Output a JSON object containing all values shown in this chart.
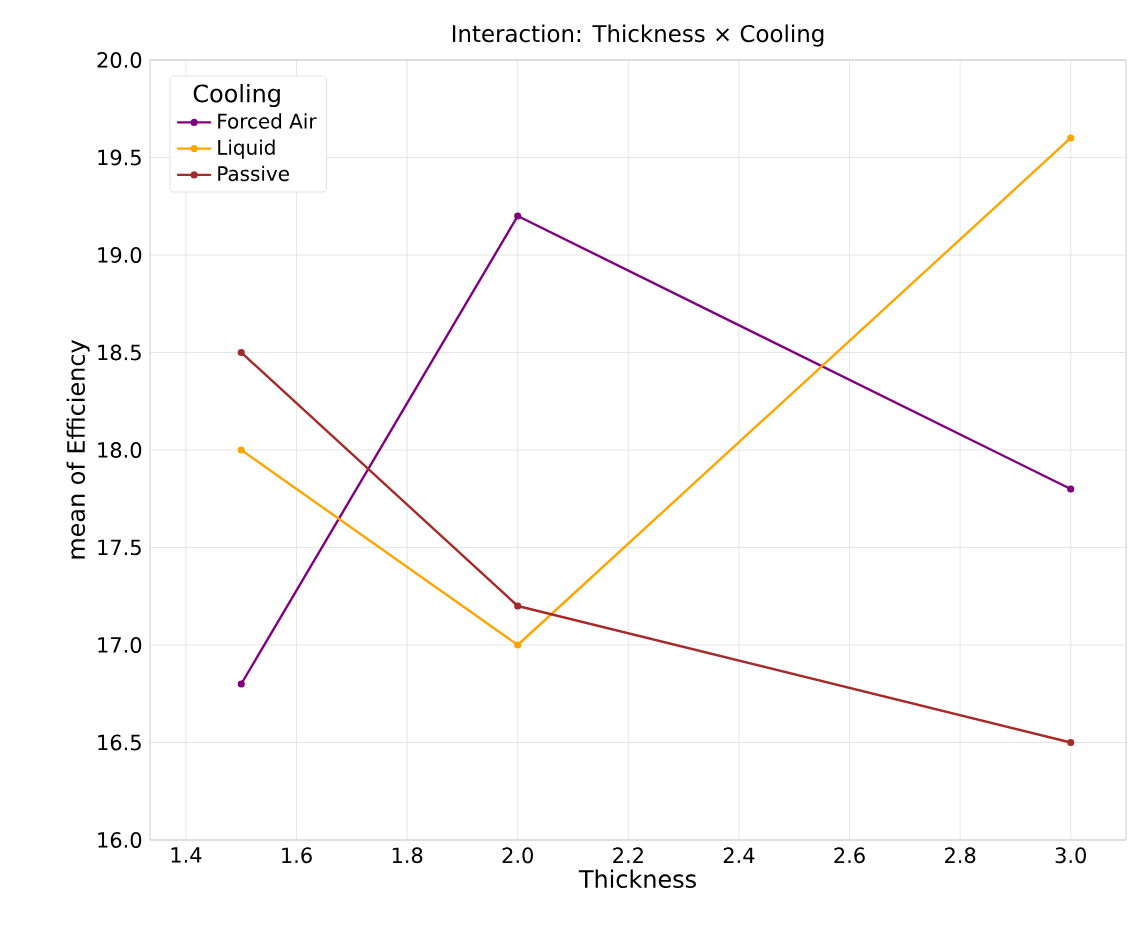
{
  "chart_data": {
    "type": "line",
    "title": "Interaction: Thickness × Cooling",
    "xlabel": "Thickness",
    "ylabel": "mean of Efficiency",
    "legend_title": "Cooling",
    "x": [
      1.5,
      2.0,
      3.0
    ],
    "series": [
      {
        "name": "Forced Air",
        "color": "#800080",
        "values": [
          16.8,
          19.2,
          17.8
        ]
      },
      {
        "name": "Liquid",
        "color": "#ffa500",
        "values": [
          18.0,
          17.0,
          19.6
        ]
      },
      {
        "name": "Passive",
        "color": "#a52a2a",
        "values": [
          18.5,
          17.2,
          16.5
        ]
      }
    ],
    "xlim": [
      1.335,
      3.1
    ],
    "ylim": [
      16,
      20
    ],
    "xticks": [
      {
        "value": 1.4,
        "label": "1.4"
      },
      {
        "value": 1.6,
        "label": "1.6"
      },
      {
        "value": 1.8,
        "label": "1.8"
      },
      {
        "value": 2.0,
        "label": "2.0"
      },
      {
        "value": 2.2,
        "label": "2.2"
      },
      {
        "value": 2.4,
        "label": "2.4"
      },
      {
        "value": 2.6,
        "label": "2.6"
      },
      {
        "value": 2.8,
        "label": "2.8"
      },
      {
        "value": 3.0,
        "label": "3.0"
      }
    ],
    "yticks": [
      {
        "value": 16,
        "label": "16.0"
      },
      {
        "value": 16.5,
        "label": "16.5"
      },
      {
        "value": 17,
        "label": "17.0"
      },
      {
        "value": 17.5,
        "label": "17.5"
      },
      {
        "value": 18,
        "label": "18.0"
      },
      {
        "value": 18.5,
        "label": "18.5"
      },
      {
        "value": 19,
        "label": "19.0"
      },
      {
        "value": 19.5,
        "label": "19.5"
      },
      {
        "value": 20,
        "label": "20.0"
      }
    ],
    "grid": true,
    "legend": "top left",
    "marker": "circle",
    "line_style": "solid"
  }
}
